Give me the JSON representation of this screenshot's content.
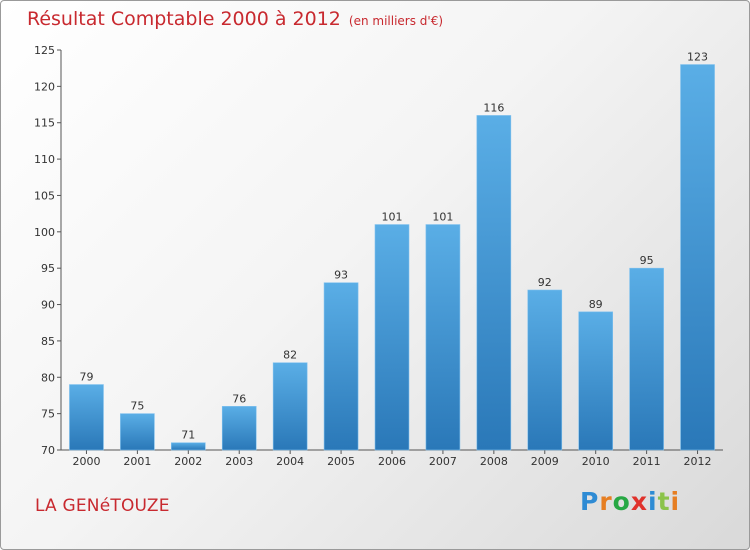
{
  "header": {
    "title": "Résultat Comptable 2000 à 2012",
    "unit": "(en milliers d'€)"
  },
  "footer": {
    "place": "LA GENéTOUZE",
    "logo": [
      "P",
      "r",
      "o",
      "x",
      "i",
      "t",
      "i"
    ]
  },
  "colors": {
    "title": "#c8292f",
    "bar_top": "#5aaee6",
    "bar_bottom": "#2a78b8",
    "logo": [
      "#2e8bd4",
      "#e67e22",
      "#27a844",
      "#e0322b",
      "#2e8bd4",
      "#8bc34a",
      "#e67e22"
    ]
  },
  "chart_data": {
    "type": "bar",
    "title": "Résultat Comptable 2000 à 2012",
    "ylabel": "en milliers d'€",
    "xlabel": "",
    "categories": [
      "2000",
      "2001",
      "2002",
      "2003",
      "2004",
      "2005",
      "2006",
      "2007",
      "2008",
      "2009",
      "2010",
      "2011",
      "2012"
    ],
    "values": [
      79,
      75,
      71,
      76,
      82,
      93,
      101,
      101,
      116,
      92,
      89,
      95,
      123
    ],
    "ylim": [
      70,
      125
    ],
    "yticks": [
      70,
      75,
      80,
      85,
      90,
      95,
      100,
      105,
      110,
      115,
      120,
      125
    ],
    "grid": false
  }
}
